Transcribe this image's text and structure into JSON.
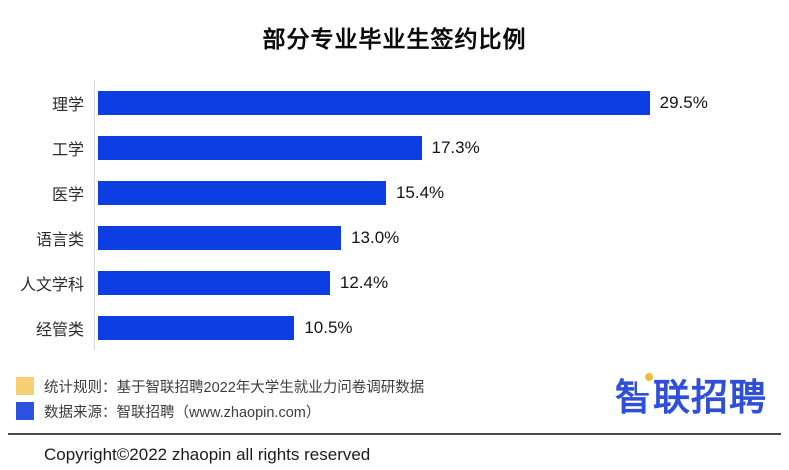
{
  "title": "部分专业毕业生签约比例",
  "chart_data": {
    "type": "bar",
    "orientation": "horizontal",
    "title": "部分专业毕业生签约比例",
    "categories": [
      "理学",
      "工学",
      "医学",
      "语言类",
      "人文学科",
      "经管类"
    ],
    "values": [
      29.5,
      17.3,
      15.4,
      13.0,
      12.4,
      10.5
    ],
    "value_labels": [
      "29.5%",
      "17.3%",
      "15.4%",
      "13.0%",
      "12.4%",
      "10.5%"
    ],
    "xlabel": "",
    "ylabel": "",
    "xlim": [
      0,
      30
    ],
    "grid": false,
    "legend_position": "none",
    "bar_color": "#0d3ee2",
    "axis_line_color": "#d9d9d9"
  },
  "legend": {
    "items": [
      {
        "swatch_color": "#f7cf73",
        "label": "统计规则：基于智联招聘2022年大学生就业力问卷调研数据"
      },
      {
        "swatch_color": "#2b52e0",
        "label": "数据来源：智联招聘（www.zhaopin.com）"
      }
    ]
  },
  "logo": {
    "first_char": "智",
    "rest": "联招聘",
    "brand_blue": "#2f4fd8",
    "brand_yellow": "#f0bc3c"
  },
  "footer": {
    "copyright": "Copyright©2022 zhaopin all rights reserved"
  }
}
